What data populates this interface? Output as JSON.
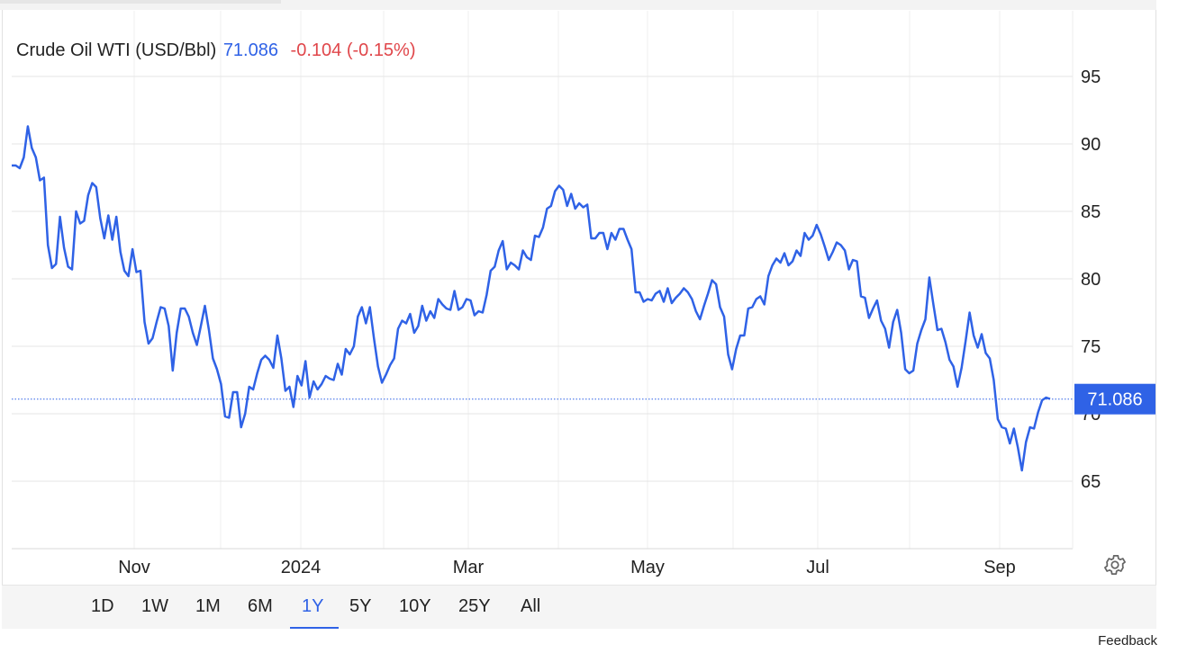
{
  "header": {
    "instrument": "Crude Oil WTI (USD/Bbl)",
    "price": "71.086",
    "change": "-0.104 (-0.15%)"
  },
  "last_price_label": "71.086",
  "periods": [
    "1D",
    "1W",
    "1M",
    "6M",
    "1Y",
    "5Y",
    "10Y",
    "25Y",
    "All"
  ],
  "active_period": "1Y",
  "feedback_label": "Feedback",
  "colors": {
    "line": "#2f62e6",
    "negative": "#e0464a",
    "grid": "#e6e6e6"
  },
  "chart_data": {
    "type": "line",
    "title": "",
    "x_tick_labels": [
      "Nov",
      "2024",
      "Mar",
      "May",
      "Jul",
      "Sep"
    ],
    "y_tick_labels": [
      "65",
      "70",
      "75",
      "80",
      "85",
      "90",
      "95"
    ],
    "ylim": [
      60,
      98
    ],
    "grid": true,
    "series": [
      {
        "name": "Crude Oil WTI",
        "values": [
          88.4,
          88.4,
          88.2,
          89.0,
          91.3,
          89.7,
          89.0,
          87.3,
          87.5,
          82.5,
          80.8,
          81.1,
          84.6,
          82.3,
          80.9,
          80.7,
          85.0,
          84.1,
          84.3,
          86.2,
          87.1,
          86.8,
          84.5,
          83.0,
          84.7,
          82.9,
          84.6,
          82.0,
          80.6,
          80.2,
          82.2,
          80.5,
          80.6,
          76.8,
          75.2,
          75.6,
          76.8,
          77.9,
          77.8,
          76.5,
          73.2,
          76.0,
          77.8,
          77.8,
          77.2,
          76.0,
          75.1,
          76.5,
          78.0,
          76.2,
          74.1,
          73.3,
          72.2,
          69.8,
          69.7,
          71.6,
          71.6,
          69.0,
          70.0,
          72.0,
          71.8,
          73.0,
          74.0,
          74.3,
          74.0,
          73.4,
          75.8,
          74.1,
          71.7,
          72.0,
          70.5,
          72.8,
          72.1,
          73.9,
          71.2,
          72.4,
          71.8,
          72.2,
          72.8,
          72.6,
          72.5,
          73.7,
          72.9,
          74.8,
          74.4,
          75.0,
          77.2,
          77.9,
          76.7,
          77.9,
          75.6,
          73.5,
          72.3,
          72.9,
          73.6,
          74.1,
          76.3,
          76.9,
          76.7,
          77.4,
          76.0,
          76.5,
          78.0,
          76.9,
          77.6,
          77.1,
          78.5,
          78.1,
          77.8,
          77.7,
          79.1,
          77.7,
          77.9,
          78.5,
          78.4,
          77.3,
          77.6,
          77.5,
          78.8,
          80.6,
          80.9,
          82.1,
          82.8,
          80.7,
          81.2,
          81.0,
          80.7,
          82.1,
          81.6,
          81.4,
          83.2,
          83.1,
          83.8,
          85.2,
          85.4,
          86.5,
          86.9,
          86.6,
          85.4,
          86.3,
          85.2,
          85.6,
          85.3,
          85.5,
          83.0,
          83.0,
          83.4,
          83.4,
          82.2,
          83.4,
          82.9,
          83.7,
          83.7,
          82.9,
          82.2,
          79.0,
          79.0,
          78.3,
          78.5,
          78.4,
          78.9,
          79.1,
          78.3,
          79.3,
          78.2,
          78.6,
          78.9,
          79.3,
          79.0,
          78.5,
          77.6,
          77.0,
          78.0,
          78.9,
          79.9,
          79.6,
          77.9,
          77.2,
          74.4,
          73.3,
          74.8,
          75.8,
          75.8,
          77.8,
          77.9,
          78.5,
          78.7,
          78.1,
          80.2,
          81.0,
          81.5,
          81.2,
          81.9,
          81.0,
          81.3,
          82.1,
          81.7,
          83.4,
          82.9,
          83.2,
          84.0,
          83.3,
          82.4,
          81.4,
          82.0,
          82.7,
          82.5,
          82.1,
          80.7,
          81.4,
          81.3,
          78.7,
          78.6,
          77.1,
          77.8,
          78.4,
          76.9,
          76.3,
          74.9,
          76.8,
          77.7,
          76.0,
          73.3,
          73.0,
          73.2,
          75.2,
          76.2,
          77.0,
          80.1,
          78.1,
          76.2,
          76.3,
          75.3,
          74.0,
          73.5,
          72.0,
          73.4,
          75.4,
          77.5,
          75.8,
          74.9,
          75.9,
          74.5,
          74.1,
          72.5,
          69.6,
          69.0,
          68.9,
          67.8,
          68.9,
          67.5,
          65.8,
          67.9,
          69.0,
          68.9,
          70.1,
          71.0,
          71.2,
          71.1
        ]
      }
    ]
  }
}
